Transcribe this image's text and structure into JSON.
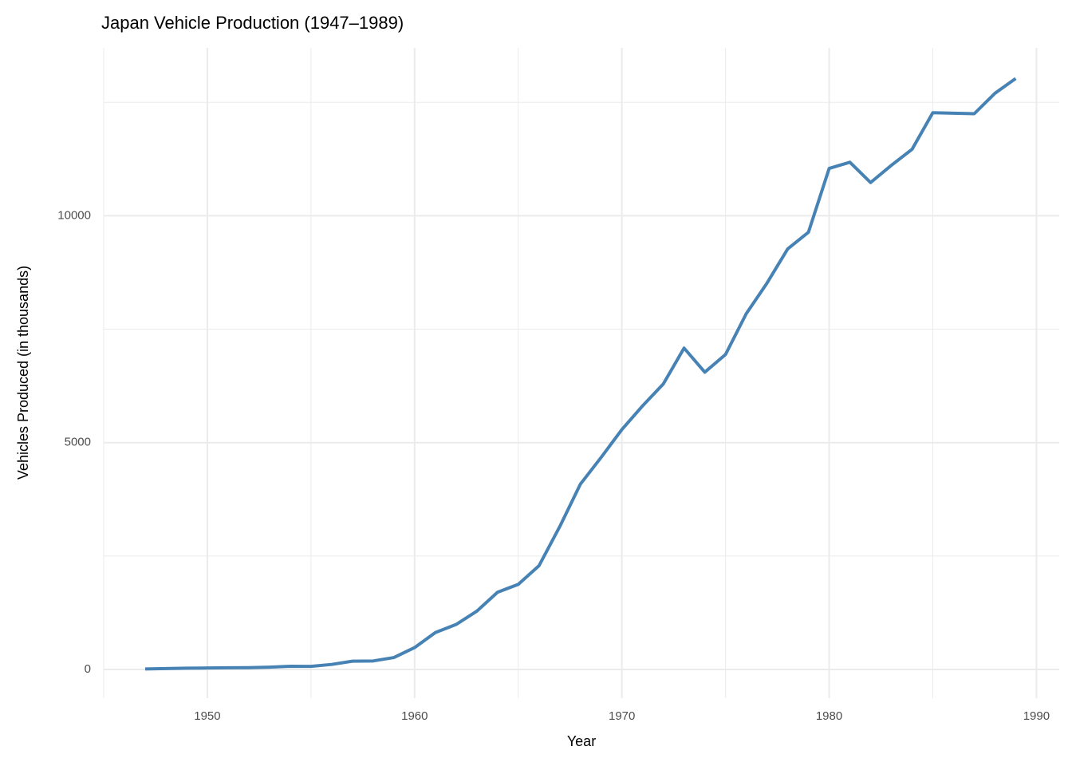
{
  "chart_data": {
    "type": "line",
    "title": "Japan Vehicle Production (1947–1989)",
    "x_label": "Year",
    "y_label": "Vehicles Produced (in thousands)",
    "x": [
      1947,
      1948,
      1949,
      1950,
      1951,
      1952,
      1953,
      1954,
      1955,
      1956,
      1957,
      1958,
      1959,
      1960,
      1961,
      1962,
      1963,
      1964,
      1965,
      1966,
      1967,
      1968,
      1969,
      1970,
      1971,
      1972,
      1973,
      1974,
      1975,
      1976,
      1977,
      1978,
      1979,
      1980,
      1981,
      1982,
      1983,
      1984,
      1985,
      1986,
      1987,
      1988,
      1989
    ],
    "series": [
      {
        "name": "Vehicles",
        "color": "#4682b4",
        "values": [
          11,
          20,
          29,
          32,
          38,
          39,
          50,
          70,
          69,
          111,
          182,
          188,
          263,
          482,
          814,
          991,
          1284,
          1702,
          1876,
          2286,
          3146,
          4086,
          4675,
          5289,
          5811,
          6294,
          7083,
          6552,
          6942,
          7841,
          8515,
          9269,
          9636,
          11043,
          11180,
          10732,
          11112,
          11465,
          12271,
          12260,
          12249,
          12700,
          13026
        ]
      }
    ],
    "xlim": [
      1945,
      1991.1
    ],
    "ylim": [
      -633,
      13700
    ],
    "xticks": [
      1950,
      1960,
      1970,
      1980,
      1990
    ],
    "yticks": [
      0,
      5000,
      10000
    ],
    "x_minor_ticks": [
      1945,
      1955,
      1965,
      1975,
      1985
    ],
    "y_minor_ticks": [
      2500,
      7500,
      12500
    ],
    "grid": true
  }
}
